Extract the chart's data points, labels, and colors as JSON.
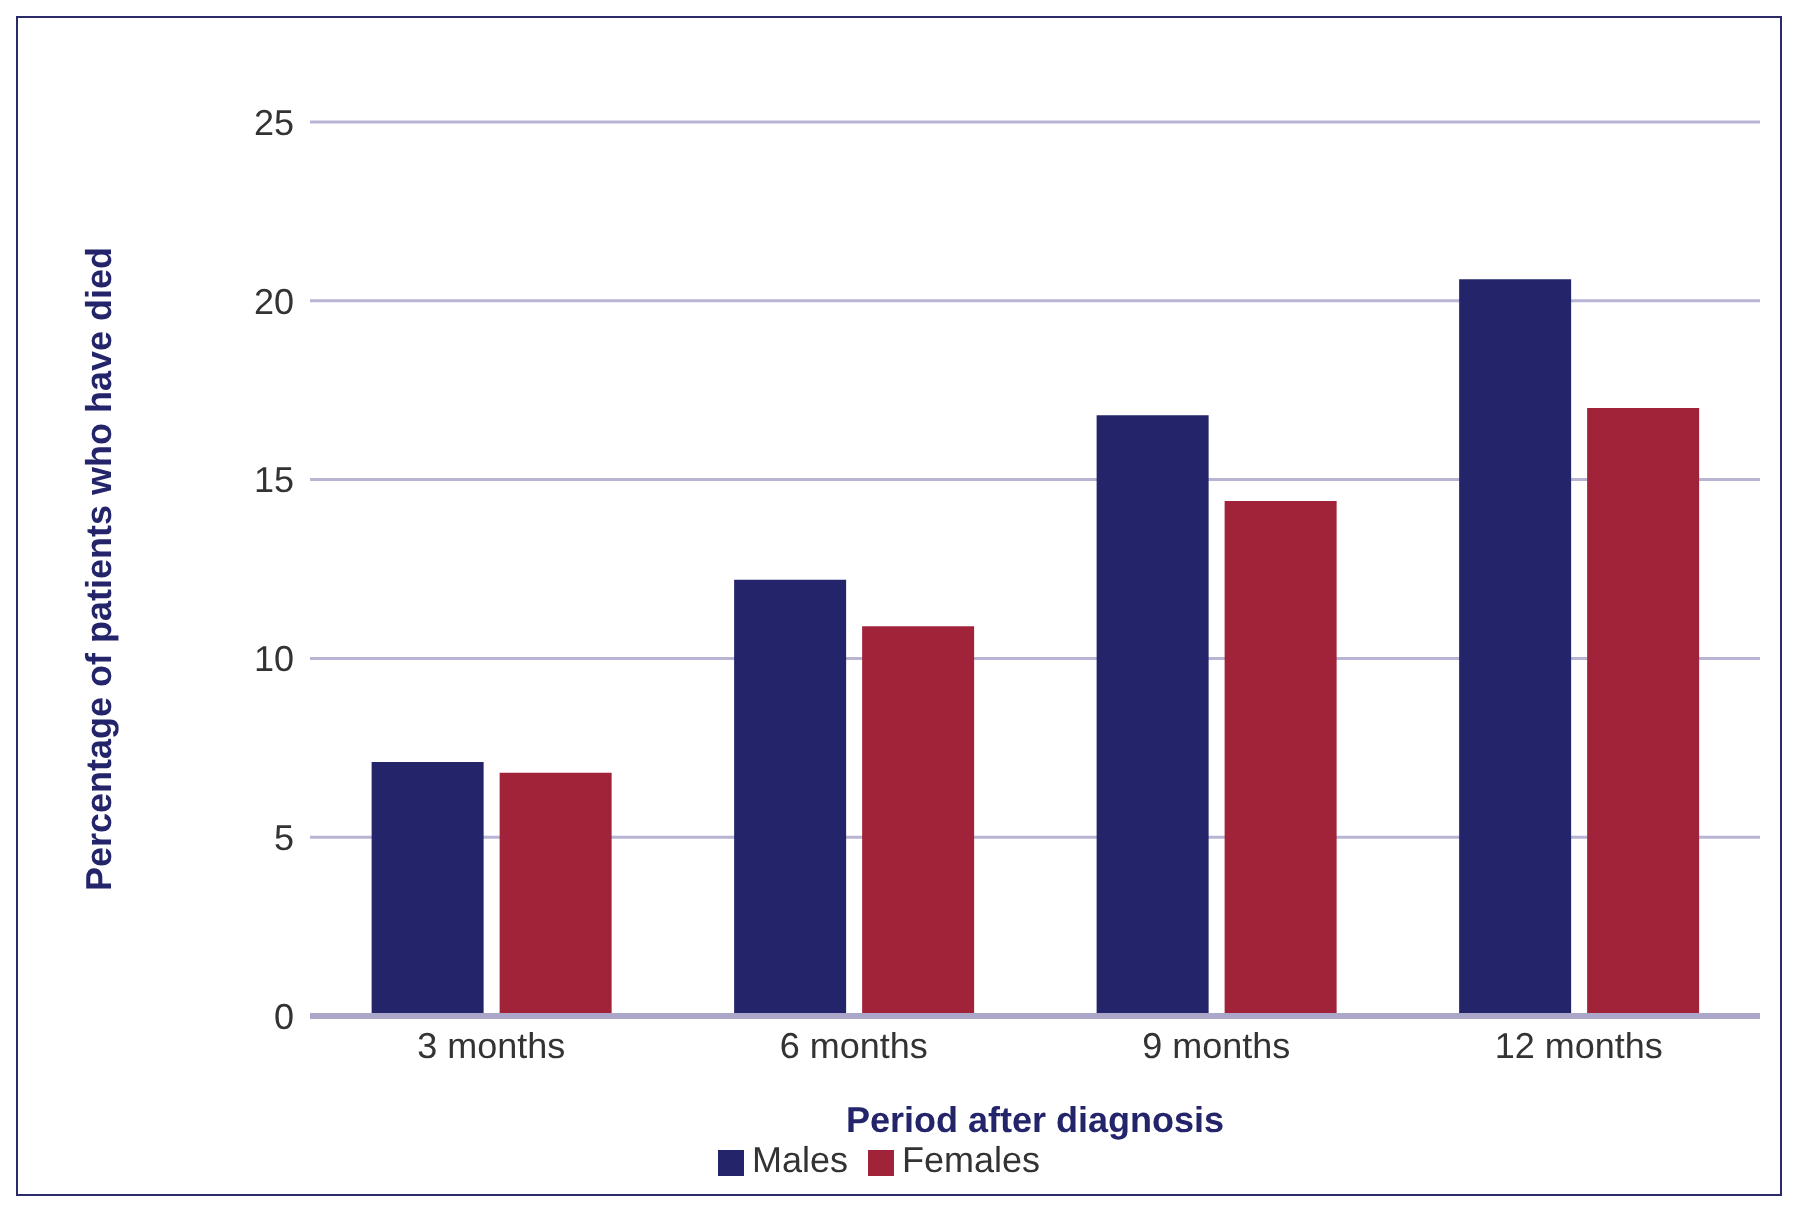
{
  "chart_data": {
    "type": "bar",
    "xlabel": "Period after diagnosis",
    "ylabel": "Percentage of patients who have died",
    "categories": [
      "3 months",
      "6 months",
      "9 months",
      "12 months"
    ],
    "series": [
      {
        "name": "Males",
        "color": "#23246a",
        "values": [
          7.1,
          12.2,
          16.8,
          20.6
        ]
      },
      {
        "name": "Females",
        "color": "#a0233a",
        "values": [
          6.8,
          10.9,
          14.4,
          17.0
        ]
      }
    ],
    "ylim": [
      0,
      25
    ],
    "yticks": [
      0,
      5,
      10,
      15,
      20,
      25
    ],
    "grid": "y",
    "legend": "bottom"
  }
}
